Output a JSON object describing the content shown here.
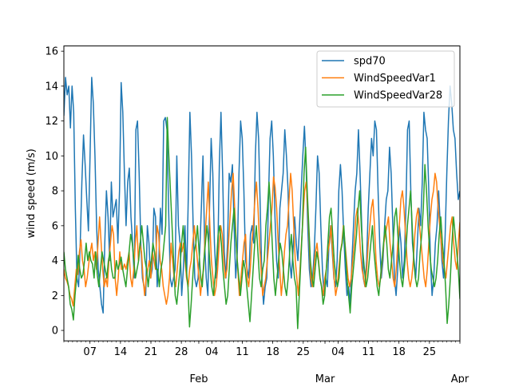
{
  "chart_data": {
    "type": "line",
    "title": "",
    "xlabel": "",
    "ylabel": "wind speed (m/s)",
    "xlim": [
      "2000-01-01",
      "2000-04-01"
    ],
    "ylim": [
      -0.6,
      16.3
    ],
    "yticks": [
      0,
      2,
      4,
      6,
      8,
      10,
      12,
      14,
      16
    ],
    "xticks_minor": [
      {
        "date": "2000-01-07",
        "label": "07"
      },
      {
        "date": "2000-01-14",
        "label": "14"
      },
      {
        "date": "2000-01-21",
        "label": "21"
      },
      {
        "date": "2000-01-28",
        "label": "28"
      },
      {
        "date": "2000-02-04",
        "label": "04"
      },
      {
        "date": "2000-02-11",
        "label": "11"
      },
      {
        "date": "2000-02-18",
        "label": "18"
      },
      {
        "date": "2000-02-25",
        "label": "25"
      },
      {
        "date": "2000-03-04",
        "label": "04"
      },
      {
        "date": "2000-03-11",
        "label": "11"
      },
      {
        "date": "2000-03-18",
        "label": "18"
      },
      {
        "date": "2000-03-25",
        "label": "25"
      }
    ],
    "xticks_major": [
      {
        "date": "2000-02-01",
        "label": "Feb"
      },
      {
        "date": "2000-03-01",
        "label": "Mar"
      },
      {
        "date": "2000-04-01",
        "label": "Apr"
      }
    ],
    "legend_position": "top-right",
    "grid": false,
    "series": [
      {
        "name": "spd70",
        "color": "#1f77b4",
        "values": [
          12.3,
          14.5,
          13.5,
          14,
          11.6,
          14,
          12.5,
          7,
          3,
          2.5,
          5,
          8.5,
          11.2,
          9.5,
          7.5,
          5.7,
          10,
          14.5,
          13,
          10,
          6,
          3.5,
          2.5,
          1.5,
          1,
          5,
          8,
          6.5,
          4,
          8.5,
          6.5,
          7,
          7.5,
          5,
          8,
          14.2,
          12.5,
          9,
          6,
          8.5,
          9.3,
          6.5,
          5,
          3,
          11.5,
          12,
          9,
          5,
          3,
          2.5,
          2,
          6,
          5,
          3,
          3.5,
          7,
          6.5,
          2.5,
          4,
          7,
          5.5,
          12,
          12.2,
          11.5,
          7,
          3,
          2.5,
          3,
          3.5,
          10,
          6,
          5,
          2,
          3.5,
          6,
          3,
          7.5,
          12.5,
          10,
          6,
          3,
          2.5,
          3,
          4.5,
          7,
          10,
          5,
          3,
          2,
          7,
          11,
          9,
          5,
          3,
          4,
          9.5,
          12.5,
          9,
          4.5,
          3,
          5,
          9,
          8.5,
          9.5,
          6,
          3,
          4.5,
          9,
          12,
          11,
          8,
          4,
          3.5,
          3,
          5.5,
          6,
          5,
          10,
          12.5,
          11,
          7,
          3,
          1.5,
          2.5,
          3,
          7.5,
          11,
          12,
          10,
          6.5,
          4,
          3,
          7,
          8,
          9,
          11.5,
          10,
          8,
          4,
          3,
          4.5,
          6.5,
          5,
          4,
          6,
          8,
          10,
          11.7,
          9.5,
          6,
          3.5,
          2.5,
          3,
          4.5,
          7,
          10,
          9,
          6,
          3.5,
          2,
          3,
          2.5,
          5,
          6,
          4.5,
          3,
          2.5,
          4,
          8,
          9.5,
          8,
          5.5,
          3.5,
          2,
          2.5,
          1.5,
          4,
          6,
          8,
          9,
          11.5,
          9,
          6,
          3,
          2.5,
          4,
          7,
          9,
          11,
          10,
          12,
          11.5,
          8,
          5,
          3,
          4,
          6,
          7.5,
          8,
          10.5,
          9,
          6,
          3,
          2,
          3.5,
          6,
          5,
          3,
          4,
          7,
          11.5,
          12,
          8,
          5,
          4,
          3,
          5,
          7,
          6,
          8.5,
          12.5,
          11.5,
          11,
          8,
          4,
          2,
          3,
          5,
          6,
          8,
          6,
          4,
          3,
          5.5,
          9,
          12,
          14,
          13,
          11.5,
          11,
          9,
          7.5,
          8
        ]
      },
      {
        "name": "WindSpeedVar1",
        "color": "#ff7f0e",
        "values": [
          3.5,
          3,
          2.8,
          2.5,
          2,
          1.8,
          1.4,
          2.5,
          3.5,
          3.2,
          4.5,
          5.2,
          4,
          3.5,
          2.5,
          3,
          3.8,
          4.5,
          5,
          4,
          4.5,
          3.5,
          5,
          6.5,
          5,
          3.5,
          2.5,
          3,
          2.5,
          4,
          5,
          6,
          5.5,
          3,
          2,
          3,
          4.5,
          3.5,
          3.5,
          3.8,
          3.5,
          4,
          4.5,
          3,
          2.5,
          3.5,
          5,
          6,
          4,
          5,
          4.5,
          3,
          2,
          3,
          3.5,
          4,
          3,
          4.5,
          4,
          3.5,
          6,
          5.5,
          4,
          3.5,
          2.5,
          2,
          1.5,
          2,
          3,
          5,
          4,
          3,
          2.5,
          3.5,
          4.5,
          5,
          4.5,
          5,
          4,
          3,
          2.5,
          3.5,
          4,
          5,
          6,
          5,
          4,
          3,
          2,
          3,
          3.5,
          5.5,
          7,
          8.5,
          6,
          4,
          3,
          2,
          2.5,
          3.5,
          5,
          6,
          5.5,
          4,
          3,
          3.5,
          5,
          6.5,
          8,
          9,
          7,
          5,
          3.5,
          2,
          3,
          4,
          5,
          5.5,
          3,
          2.5,
          3.5,
          5,
          6,
          7.5,
          8.5,
          7,
          5,
          3.5,
          2,
          2.5,
          3,
          4,
          5,
          6,
          7,
          8.8,
          8.2,
          7,
          5,
          3.5,
          2,
          3,
          4.5,
          5.5,
          6,
          7.5,
          9,
          8,
          6,
          4,
          3,
          2,
          3.5,
          5,
          6.5,
          8,
          8.5,
          7,
          5,
          3,
          2.5,
          3.5,
          4.5,
          5,
          4,
          3,
          2.5,
          2,
          3,
          3.5,
          4.5,
          5,
          6,
          4.5,
          3,
          2,
          2.5,
          3.5,
          4.5,
          5,
          6,
          5,
          4,
          3,
          2.5,
          3,
          4,
          5,
          6.5,
          7,
          6,
          4.5,
          3.5,
          3,
          2.5,
          3.5,
          5,
          6,
          7,
          7.5,
          6,
          4,
          3,
          2.5,
          3,
          4,
          5,
          5.5,
          6,
          6.5,
          5,
          4,
          3,
          2.5,
          3.5,
          5,
          6,
          7.5,
          8,
          7,
          5.5,
          4,
          3,
          2.5,
          3,
          4,
          5.5,
          6.5,
          7,
          6,
          5,
          4,
          3,
          2.5,
          3.5,
          5,
          6.5,
          7.5,
          8,
          9,
          8.5,
          7,
          6,
          5,
          4,
          3.5,
          3,
          4,
          5,
          6,
          6.5,
          5,
          4,
          3.5,
          5,
          6.2
        ]
      },
      {
        "name": "WindSpeedVar28",
        "color": "#2ca02c",
        "values": [
          4.5,
          3.5,
          3,
          2.5,
          1.5,
          1.2,
          0.6,
          2,
          3,
          4.3,
          3.5,
          3,
          3.2,
          4,
          5,
          4,
          4.5,
          4,
          3.8,
          3,
          4.5,
          3.2,
          2.5,
          3.5,
          4.5,
          4,
          3.5,
          3,
          4,
          4.5,
          3.5,
          3,
          3,
          4,
          3.5,
          3.8,
          4.2,
          3.5,
          3,
          2.5,
          3.5,
          4.5,
          5.5,
          5,
          4,
          3,
          3.5,
          4,
          5,
          6,
          5,
          4,
          3.5,
          2.5,
          3.5,
          4,
          5,
          4.5,
          3.5,
          3.5,
          2.5,
          3.5,
          4,
          5,
          6,
          12.2,
          10,
          8,
          6,
          4,
          2,
          1.5,
          2.5,
          3.5,
          5,
          6,
          4.5,
          3.5,
          2.5,
          0.2,
          1.5,
          3,
          4.5,
          5,
          6,
          4.5,
          3,
          2.5,
          4,
          5,
          6,
          5,
          3.5,
          2.5,
          2,
          3,
          4,
          5.5,
          6,
          5,
          3.5,
          2.5,
          1.5,
          2,
          3.5,
          5,
          6,
          7,
          5.5,
          4,
          3,
          2,
          3,
          4,
          3.5,
          2.5,
          1.5,
          0.5,
          2,
          3.5,
          5,
          6,
          4.5,
          3,
          2.5,
          3.5,
          4,
          6,
          7,
          8.5,
          7,
          5,
          3,
          2,
          3,
          4,
          5,
          4.5,
          3.5,
          2.5,
          2,
          3,
          4.5,
          5.5,
          4,
          3,
          2.5,
          0.1,
          2,
          4,
          6,
          9,
          10.5,
          8,
          6,
          4,
          3,
          2.5,
          3.5,
          4.5,
          4,
          3,
          2.5,
          1.5,
          2,
          3.5,
          5,
          6.5,
          7,
          5.5,
          4,
          3,
          2.5,
          3,
          4.5,
          5,
          6,
          4.5,
          3,
          2,
          1,
          2.5,
          3.5,
          4.5,
          5.5,
          7,
          8,
          6,
          4.5,
          3.5,
          2.5,
          3,
          4,
          5,
          6,
          4.5,
          3.5,
          2.5,
          2,
          3,
          4,
          5,
          6,
          5,
          3.5,
          3,
          4,
          5,
          6.5,
          7,
          5.5,
          4,
          3,
          2.5,
          3.5,
          4.5,
          6,
          7,
          8,
          6,
          4,
          3,
          2.5,
          3,
          4.5,
          5.5,
          7,
          9.5,
          8,
          6,
          4.5,
          3.5,
          3,
          2.5,
          3,
          4,
          5.5,
          6.5,
          5,
          4,
          2.5,
          0.4,
          1.5,
          3,
          5,
          6.5,
          5.5,
          4.5,
          3.5,
          1.8
        ]
      }
    ]
  }
}
